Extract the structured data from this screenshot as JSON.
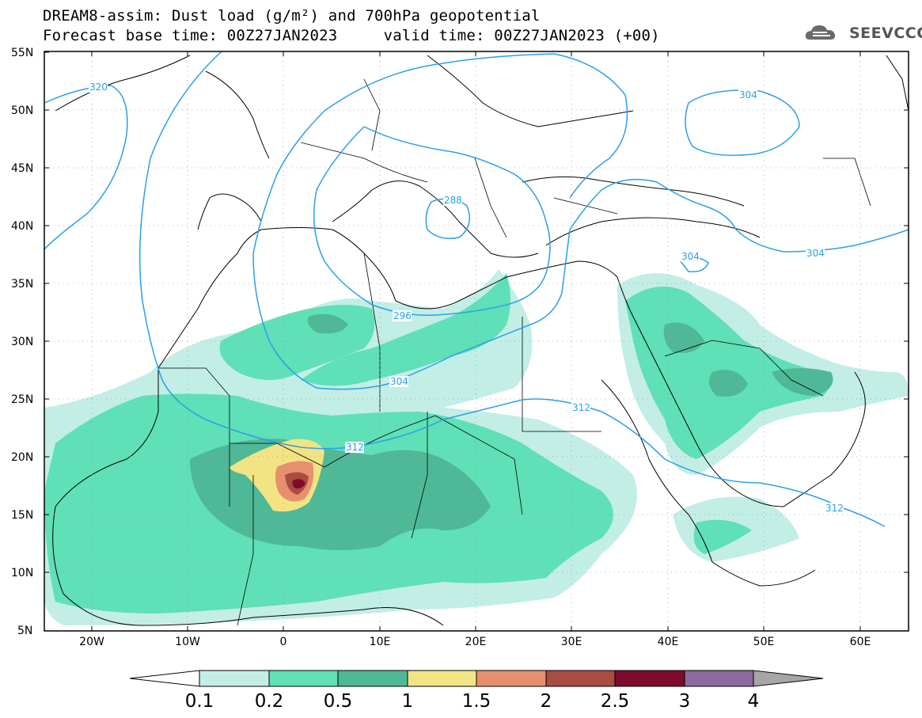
{
  "header": {
    "title_line1": "DREAM8-assim: Dust load (g/m²) and 700hPa geopotential",
    "title_line2": "Forecast base time: 00Z27JAN2023     valid time: 00Z27JAN2023 (+00)",
    "logo_text": "SEEVCCC"
  },
  "map": {
    "lat_labels": [
      "55N",
      "50N",
      "45N",
      "40N",
      "35N",
      "30N",
      "25N",
      "20N",
      "15N",
      "10N",
      "5N"
    ],
    "lon_labels": [
      "20W",
      "10W",
      "0",
      "10E",
      "20E",
      "30E",
      "40E",
      "50E",
      "60E"
    ],
    "contour_labels": [
      "320",
      "304",
      "288",
      "296",
      "304",
      "304",
      "312",
      "312",
      "312",
      "304"
    ],
    "contour_color": "#2aa0e6"
  },
  "colorbar": {
    "labels": [
      "0.1",
      "0.2",
      "0.5",
      "1",
      "1.5",
      "2",
      "2.5",
      "3",
      "4"
    ],
    "colors": [
      "#c2eee6",
      "#5fe0b6",
      "#4fb896",
      "#f2e384",
      "#e8906e",
      "#a94c42",
      "#7e0a2c",
      "#8b6a9d"
    ],
    "over_color": "#a6a6a6",
    "under_color": "#ffffff"
  }
}
